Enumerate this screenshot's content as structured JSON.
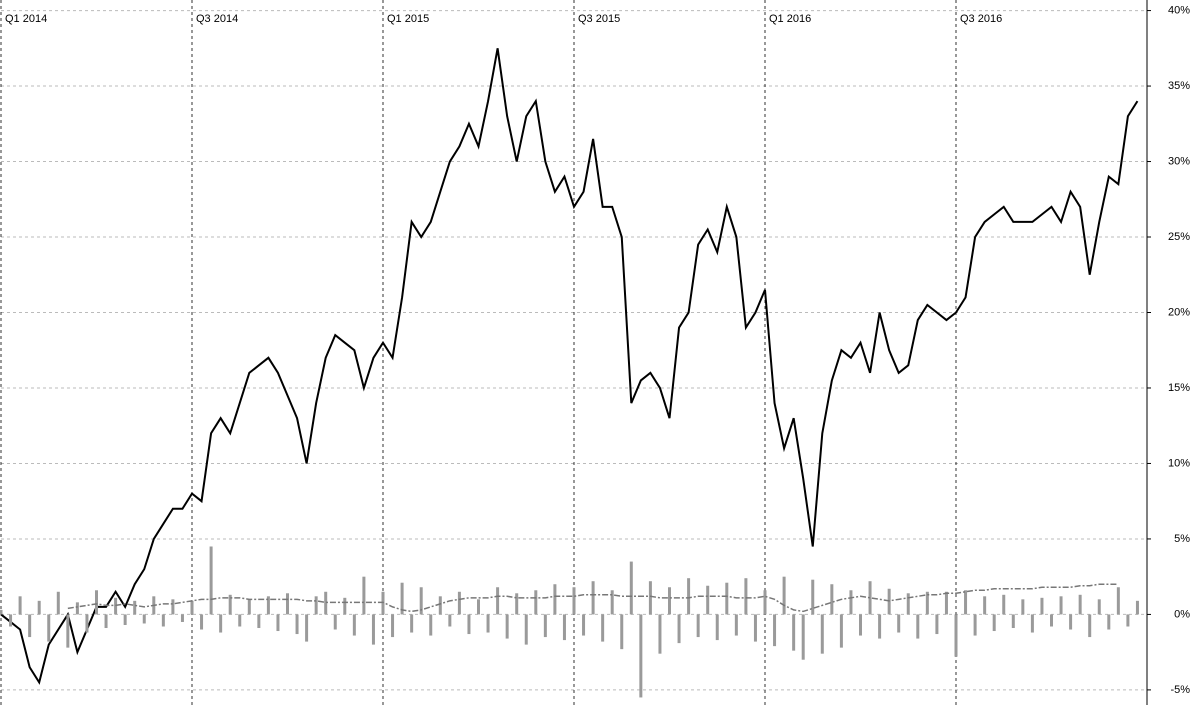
{
  "chart_data": {
    "type": "line",
    "x": [
      0,
      0.1,
      0.2,
      0.3,
      0.4,
      0.5,
      0.6,
      0.7,
      0.8,
      0.9,
      1,
      1.1,
      1.2,
      1.3,
      1.4,
      1.5,
      1.6,
      1.7,
      1.8,
      1.9,
      2,
      2.1,
      2.2,
      2.3,
      2.4,
      2.5,
      2.6,
      2.7,
      2.8,
      2.9,
      3,
      3.1,
      3.2,
      3.3,
      3.4,
      3.5,
      3.6,
      3.7,
      3.8,
      3.9,
      4,
      4.1,
      4.2,
      4.3,
      4.4,
      4.5,
      4.6,
      4.7,
      4.8,
      4.9,
      5,
      5.1,
      5.2,
      5.3,
      5.4,
      5.5,
      5.6,
      5.7,
      5.8,
      5.9,
      6,
      6.1,
      6.2,
      6.3,
      6.4,
      6.5,
      6.6,
      6.7,
      6.8,
      6.9,
      7,
      7.1,
      7.2,
      7.3,
      7.4,
      7.5,
      7.6,
      7.7,
      7.8,
      7.9,
      8,
      8.1,
      8.2,
      8.3,
      8.4,
      8.5,
      8.6,
      8.7,
      8.8,
      8.9,
      9,
      9.1,
      9.2,
      9.3,
      9.4,
      9.5,
      9.6,
      9.7,
      9.8,
      9.9,
      10,
      10.1,
      10.2,
      10.3,
      10.4,
      10.5,
      10.6,
      10.7,
      10.8,
      10.9,
      11,
      11.1,
      11.2,
      11.3,
      11.4,
      11.5,
      11.6,
      11.7,
      11.8,
      11.9
    ],
    "series": [
      {
        "kind": "line",
        "color": "#000000",
        "values": [
          0,
          -0.5,
          -1,
          -3.5,
          -4.5,
          -2,
          -1,
          0,
          -2.5,
          -1,
          0.5,
          0.5,
          1.5,
          0.5,
          2,
          3,
          5,
          6,
          7,
          7,
          8,
          7.5,
          12,
          13,
          12,
          14,
          16,
          16.5,
          17,
          16,
          14.5,
          13,
          10,
          14,
          17,
          18.5,
          18,
          17.5,
          15,
          17,
          18,
          17,
          21,
          26,
          25,
          26,
          28,
          30,
          31,
          32.5,
          31,
          34,
          37.5,
          33,
          30,
          33,
          34,
          30,
          28,
          29,
          27,
          28,
          31.5,
          27,
          27,
          25,
          14,
          15.5,
          16,
          15,
          13,
          19,
          20,
          24.5,
          25.5,
          24,
          27,
          25,
          19,
          20,
          21.5,
          14,
          11,
          13,
          9,
          4.5,
          12,
          15.5,
          17.5,
          17,
          18,
          16,
          20,
          17.5,
          16,
          16.5,
          19.5,
          20.5,
          20,
          19.5,
          20,
          21,
          25,
          26,
          26.5,
          27,
          26,
          26,
          26,
          26.5,
          27,
          26,
          28,
          27,
          22.5,
          26,
          29,
          28.5,
          33,
          34
        ]
      },
      {
        "kind": "bar",
        "color": "#9a9a9a",
        "values": [
          0.3,
          -0.8,
          1.2,
          -1.5,
          0.9,
          -1.8,
          1.5,
          -2.2,
          0.8,
          -1.2,
          1.6,
          -0.9,
          1.1,
          -0.7,
          0.9,
          -0.6,
          1.2,
          -0.8,
          1.0,
          -0.5,
          0.9,
          -1.0,
          4.5,
          -1.2,
          1.3,
          -0.8,
          1.0,
          -0.9,
          1.2,
          -1.1,
          1.4,
          -1.3,
          -1.8,
          1.2,
          1.5,
          -1.0,
          1.1,
          -1.4,
          2.5,
          -2.0,
          1.5,
          -1.5,
          2.1,
          -1.2,
          1.8,
          -1.4,
          1.2,
          -0.8,
          1.5,
          -1.3,
          1.0,
          -1.2,
          1.8,
          -1.6,
          1.4,
          -2.0,
          1.6,
          -1.5,
          2.0,
          -1.7,
          1.8,
          -1.4,
          2.2,
          -1.8,
          1.6,
          -2.3,
          3.5,
          -5.5,
          2.2,
          -2.6,
          1.8,
          -1.9,
          2.4,
          -1.5,
          1.9,
          -1.7,
          2.1,
          -1.4,
          2.4,
          -1.8,
          1.6,
          -2.1,
          2.5,
          -2.4,
          -3.0,
          2.3,
          -2.6,
          2.0,
          -2.2,
          1.6,
          -1.4,
          2.2,
          -1.6,
          1.7,
          -1.2,
          1.4,
          -1.6,
          1.5,
          -1.3,
          1.5,
          -2.8,
          1.6,
          -1.4,
          1.2,
          -1.1,
          1.3,
          -0.9,
          1.0,
          -1.2,
          1.1,
          -0.8,
          1.2,
          -1.0,
          1.3,
          -1.5,
          1.0,
          -1.0,
          1.8,
          -0.8,
          0.9
        ]
      },
      {
        "kind": "rolling",
        "color": "#777777",
        "values": [
          null,
          null,
          null,
          null,
          null,
          null,
          null,
          0.4,
          0.5,
          0.6,
          0.7,
          0.6,
          0.6,
          0.7,
          0.6,
          0.5,
          0.6,
          0.7,
          0.7,
          0.8,
          0.9,
          1.0,
          1.0,
          1.1,
          1.1,
          1.1,
          1.0,
          1.0,
          1.0,
          1.0,
          1.0,
          1.0,
          0.9,
          0.9,
          0.8,
          0.8,
          0.8,
          0.8,
          0.8,
          0.8,
          0.8,
          0.5,
          0.3,
          0.2,
          0.3,
          0.5,
          0.7,
          0.9,
          1.0,
          1.1,
          1.1,
          1.1,
          1.2,
          1.2,
          1.1,
          1.1,
          1.1,
          1.1,
          1.2,
          1.2,
          1.2,
          1.3,
          1.3,
          1.3,
          1.3,
          1.2,
          1.2,
          1.2,
          1.2,
          1.1,
          1.1,
          1.1,
          1.1,
          1.2,
          1.2,
          1.2,
          1.2,
          1.1,
          1.1,
          1.1,
          1.2,
          1.0,
          0.6,
          0.3,
          0.2,
          0.4,
          0.6,
          0.8,
          1.0,
          1.1,
          1.2,
          1.1,
          1.0,
          0.9,
          1.0,
          1.1,
          1.2,
          1.3,
          1.3,
          1.4,
          1.4,
          1.5,
          1.6,
          1.6,
          1.7,
          1.7,
          1.7,
          1.7,
          1.7,
          1.8,
          1.8,
          1.8,
          1.8,
          1.9,
          1.9,
          2.0,
          2.0,
          2.0,
          null,
          null
        ]
      }
    ],
    "xlim": [
      0,
      12
    ],
    "xticks": [
      {
        "value": 0,
        "label": "Q1 2014"
      },
      {
        "value": 2,
        "label": "Q3 2014"
      },
      {
        "value": 4,
        "label": "Q1 2015"
      },
      {
        "value": 6,
        "label": "Q3 2015"
      },
      {
        "value": 8,
        "label": "Q1 2016"
      },
      {
        "value": 10,
        "label": "Q3 2016"
      }
    ],
    "ylim": [
      -6,
      40.7
    ],
    "yticks": [
      {
        "value": -5,
        "label": "-5%"
      },
      {
        "value": 0,
        "label": "0%"
      },
      {
        "value": 5,
        "label": "5%"
      },
      {
        "value": 10,
        "label": "10%"
      },
      {
        "value": 15,
        "label": "15%"
      },
      {
        "value": 20,
        "label": "20%"
      },
      {
        "value": 25,
        "label": "25%"
      },
      {
        "value": 30,
        "label": "30%"
      },
      {
        "value": 35,
        "label": "35%"
      },
      {
        "value": 40,
        "label": "40%"
      }
    ],
    "grid": true
  }
}
